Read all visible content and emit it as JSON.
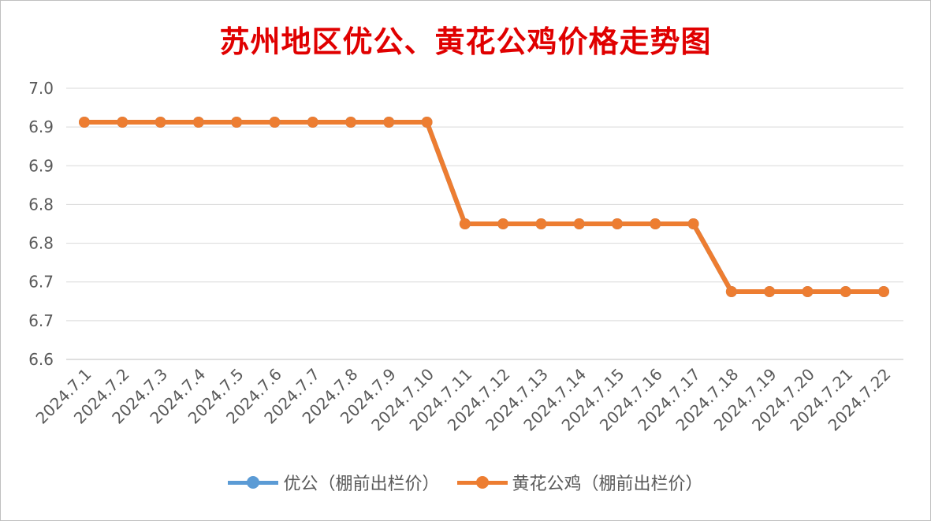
{
  "chart_data": {
    "type": "line",
    "title": "苏州地区优公、黄花公鸡价格走势图",
    "categories": [
      "2024.7.1",
      "2024.7.2",
      "2024.7.3",
      "2024.7.4",
      "2024.7.5",
      "2024.7.6",
      "2024.7.7",
      "2024.7.8",
      "2024.7.9",
      "2024.7.10",
      "2024.7.11",
      "2024.7.12",
      "2024.7.13",
      "2024.7.14",
      "2024.7.15",
      "2024.7.16",
      "2024.7.17",
      "2024.7.18",
      "2024.7.19",
      "2024.7.20",
      "2024.7.21",
      "2024.7.22"
    ],
    "y_tick_labels": [
      "7.0",
      "6.9",
      "6.9",
      "6.8",
      "6.8",
      "6.7",
      "6.7",
      "6.6"
    ],
    "ylim": [
      6.6,
      7.0
    ],
    "grid": true,
    "legend_position": "bottom",
    "series": [
      {
        "name": "优公（棚前出栏价）",
        "color": "#5b9bd5",
        "values": [
          6.95,
          6.95,
          6.95,
          6.95,
          6.95,
          6.95,
          6.95,
          6.95,
          6.95,
          6.95,
          6.8,
          6.8,
          6.8,
          6.8,
          6.8,
          6.8,
          6.8,
          6.7,
          6.7,
          6.7,
          6.7,
          6.7
        ]
      },
      {
        "name": "黄花公鸡（棚前出栏价）",
        "color": "#ed7d31",
        "values": [
          6.95,
          6.95,
          6.95,
          6.95,
          6.95,
          6.95,
          6.95,
          6.95,
          6.95,
          6.95,
          6.8,
          6.8,
          6.8,
          6.8,
          6.8,
          6.8,
          6.8,
          6.7,
          6.7,
          6.7,
          6.7,
          6.7
        ]
      }
    ]
  }
}
